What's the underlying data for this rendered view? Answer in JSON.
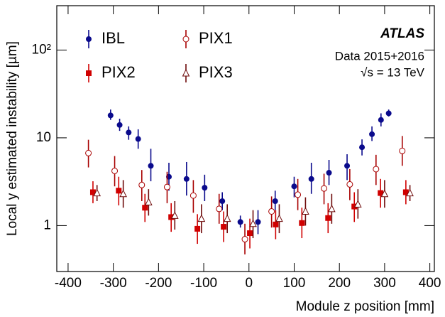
{
  "chart_data": {
    "type": "errorbar-scatter",
    "xlabel": "Module z position [mm]",
    "ylabel": "Local y estimated instability [µm]",
    "annotations": [
      "ATLAS",
      "Data 2015+2016",
      "√s = 13 TeV"
    ],
    "xlim": [
      -425,
      410
    ],
    "xticks": [
      -400,
      -300,
      -200,
      -100,
      0,
      100,
      200,
      300,
      400
    ],
    "ylim": [
      0.3,
      320
    ],
    "yticks": [
      1,
      10,
      {
        "value": 100,
        "label": "10²"
      }
    ],
    "log_y": true,
    "legend": "upper left",
    "series": [
      {
        "name": "IBL",
        "color": "#0a0a8c",
        "marker": "circle",
        "x": [
          -306,
          -286,
          -266,
          -245,
          -217,
          -177,
          -138,
          -98,
          -59,
          -19,
          20,
          58,
          100,
          138,
          177,
          217,
          250,
          272,
          292,
          309
        ],
        "values": [
          18,
          14,
          11.5,
          9.7,
          4.8,
          3.6,
          3.4,
          2.7,
          1.9,
          1.1,
          1.1,
          1.9,
          2.8,
          3.4,
          4.0,
          4.8,
          7.8,
          11,
          16,
          19
        ],
        "lower": [
          16,
          12,
          9.5,
          7.5,
          3.2,
          2.5,
          2.2,
          1.9,
          1.5,
          0.95,
          0.8,
          1.5,
          2.1,
          2.3,
          2.9,
          3.3,
          6.3,
          9.2,
          13.5,
          17.5
        ],
        "upper": [
          21,
          16.5,
          13.5,
          12.5,
          7.5,
          5.2,
          5.3,
          3.8,
          2.4,
          1.3,
          1.5,
          2.5,
          3.6,
          5.2,
          5.6,
          6.5,
          9.6,
          13.5,
          19,
          21
        ]
      },
      {
        "name": "PIX1",
        "color": "#a80000",
        "marker": "open-circle",
        "x": [
          -355,
          -297,
          -237,
          -181,
          -123,
          -66,
          -9,
          50,
          108,
          166,
          223,
          281,
          339
        ],
        "values": [
          6.7,
          4.2,
          2.9,
          2.75,
          2.2,
          1.55,
          0.7,
          1.45,
          2.25,
          2.65,
          2.95,
          4.4,
          7.1
        ],
        "lower": [
          4.6,
          2.8,
          1.9,
          1.8,
          1.4,
          1.05,
          0.47,
          0.95,
          1.5,
          1.75,
          1.95,
          2.9,
          4.8
        ],
        "upper": [
          9.5,
          6.2,
          4.3,
          4.1,
          3.3,
          2.3,
          1.05,
          2.15,
          3.4,
          3.9,
          4.4,
          6.4,
          10.5
        ]
      },
      {
        "name": "PIX2",
        "color": "#d00000",
        "marker": "square",
        "x": [
          -345,
          -288,
          -230,
          -172,
          -114,
          -56,
          2,
          59,
          117,
          175,
          233,
          291,
          347
        ],
        "values": [
          2.4,
          2.5,
          1.6,
          1.25,
          0.92,
          0.97,
          0.82,
          1.03,
          1.07,
          1.22,
          1.65,
          2.35,
          2.4
        ],
        "lower": [
          1.8,
          1.7,
          1.1,
          0.85,
          0.62,
          0.65,
          0.55,
          0.7,
          0.72,
          0.82,
          1.1,
          1.6,
          1.75
        ],
        "upper": [
          3.2,
          3.6,
          2.3,
          1.8,
          1.35,
          1.45,
          1.2,
          1.5,
          1.6,
          1.8,
          2.4,
          3.4,
          3.3
        ]
      },
      {
        "name": "PIX3",
        "color": "#6e0a0a",
        "marker": "open-triangle",
        "x": [
          -336,
          -278,
          -222,
          -164,
          -105,
          -48,
          9,
          67,
          125,
          183,
          241,
          300,
          356
        ],
        "values": [
          2.35,
          2.3,
          1.85,
          1.3,
          1.2,
          1.2,
          1.05,
          1.2,
          1.45,
          1.55,
          1.75,
          2.3,
          2.35
        ],
        "lower": [
          1.9,
          1.6,
          1.3,
          0.9,
          0.82,
          0.82,
          0.72,
          0.82,
          1.0,
          1.05,
          1.2,
          1.6,
          1.9
        ],
        "upper": [
          2.9,
          3.3,
          2.6,
          1.9,
          1.75,
          1.75,
          1.5,
          1.75,
          2.1,
          2.3,
          2.6,
          3.3,
          2.9
        ]
      }
    ]
  }
}
